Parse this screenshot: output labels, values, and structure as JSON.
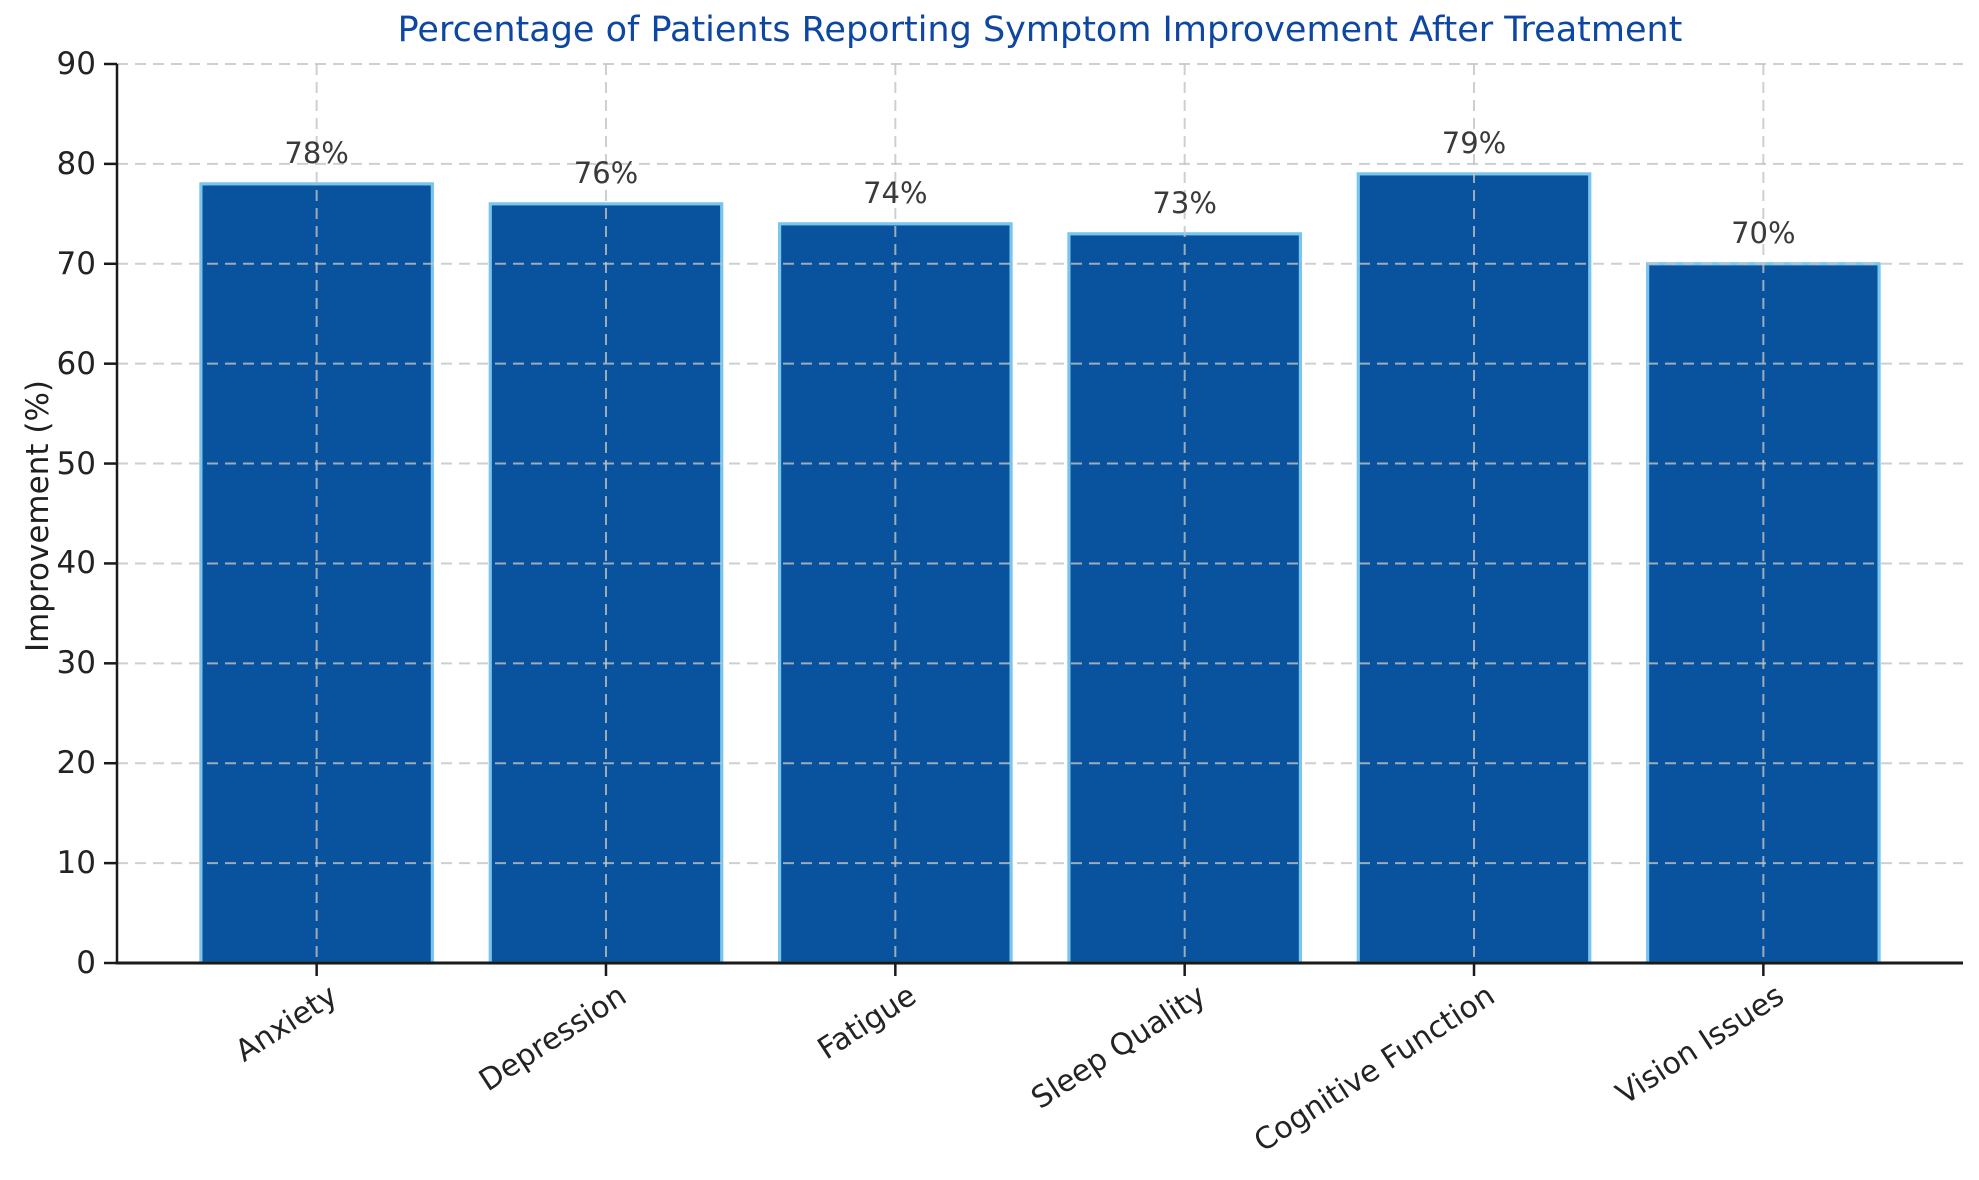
{
  "figure": {
    "title": "Percentage of Patients Reporting Symptom Improvement After Treatment"
  },
  "chart_data": {
    "type": "bar",
    "title": "Percentage of Patients Reporting Symptom Improvement After Treatment",
    "categories": [
      "Anxiety",
      "Depression",
      "Fatigue",
      "Sleep Quality",
      "Cognitive Function",
      "Vision Issues"
    ],
    "values": [
      78,
      76,
      74,
      73,
      79,
      70
    ],
    "value_labels": [
      "78%",
      "76%",
      "74%",
      "73%",
      "79%",
      "70%"
    ],
    "xlabel": "",
    "ylabel": "Improvement (%)",
    "ylim": [
      0,
      90
    ],
    "yticks": [
      0,
      10,
      20,
      30,
      40,
      50,
      60,
      70,
      80,
      90
    ],
    "grid": "dashed gridlines on both axes, drawn over bars",
    "legend_position": "none",
    "x_tick_rotation_degrees": 33,
    "colors": {
      "bar_fill": "#09529D",
      "bar_edge": "#79C5EC",
      "title_text": "#0D47A1",
      "grid_line": "#C3C3C3",
      "axis_line": "#1A1A1A",
      "tick_text": "#232323",
      "value_label_text": "#3A3A3A",
      "background": "#FFFFFF"
    }
  }
}
